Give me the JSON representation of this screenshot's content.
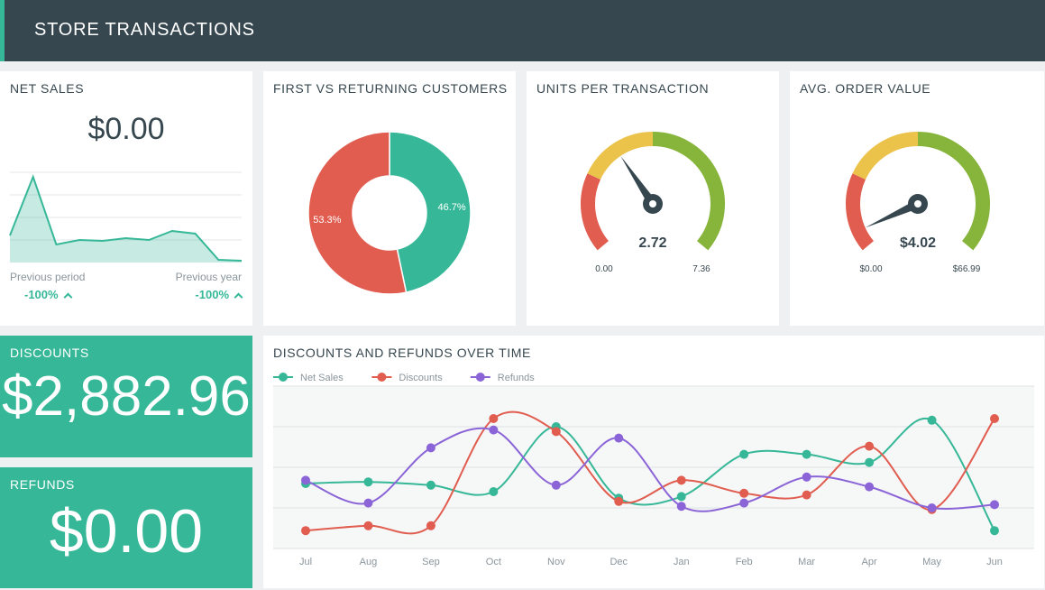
{
  "header": {
    "title": "STORE TRANSACTIONS"
  },
  "net_sales": {
    "title": "NET SALES",
    "value": "$0.00",
    "prev_period_label": "Previous period",
    "prev_period_value": "-100%",
    "prev_year_label": "Previous year",
    "prev_year_value": "-100%",
    "sparkline": [
      30,
      95,
      20,
      25,
      24,
      27,
      25,
      35,
      32,
      3,
      2
    ]
  },
  "first_vs_returning": {
    "title": "FIRST VS RETURNING CUSTOMERS",
    "chart_data": {
      "type": "pie",
      "slices": [
        {
          "label": "46.7%",
          "value": 46.7,
          "color": "#36b898"
        },
        {
          "label": "53.3%",
          "value": 53.3,
          "color": "#e05d50"
        }
      ]
    }
  },
  "units_per_transaction": {
    "title": "UNITS PER TRANSACTION",
    "value": "2.72",
    "min": "0.00",
    "max": "7.36",
    "value_num": 2.72,
    "min_num": 0,
    "max_num": 7.36
  },
  "avg_order_value": {
    "title": "AVG. ORDER VALUE",
    "value": "$4.02",
    "min": "$0.00",
    "max": "$66.99",
    "value_num": 4.02,
    "min_num": 0,
    "max_num": 66.99
  },
  "discounts": {
    "title": "DISCOUNTS",
    "value": "$2,882.96"
  },
  "refunds": {
    "title": "REFUNDS",
    "value": "$0.00"
  },
  "over_time": {
    "title": "DISCOUNTS AND REFUNDS OVER TIME",
    "chart_data": {
      "type": "line",
      "categories": [
        "Jul",
        "Aug",
        "Sep",
        "Oct",
        "Nov",
        "Dec",
        "Jan",
        "Feb",
        "Mar",
        "Apr",
        "May",
        "Jun"
      ],
      "ylim": [
        0,
        100
      ],
      "series": [
        {
          "name": "Net Sales",
          "color": "#36b898",
          "values": [
            40,
            41,
            39,
            35,
            75,
            31,
            32,
            58,
            58,
            53,
            79,
            11
          ]
        },
        {
          "name": "Discounts",
          "color": "#e05d50",
          "values": [
            11,
            14,
            14,
            80,
            72,
            29,
            42,
            34,
            33,
            63,
            24,
            80
          ]
        },
        {
          "name": "Refunds",
          "color": "#8b65d8",
          "values": [
            42,
            28,
            62,
            73,
            39,
            68,
            26,
            28,
            44,
            38,
            25,
            27
          ]
        }
      ]
    }
  },
  "colors": {
    "teal": "#36b898",
    "red": "#e05d50",
    "yellow": "#ebc24a",
    "green": "#87b43b",
    "purple": "#8b65d8",
    "header": "#37474f"
  }
}
